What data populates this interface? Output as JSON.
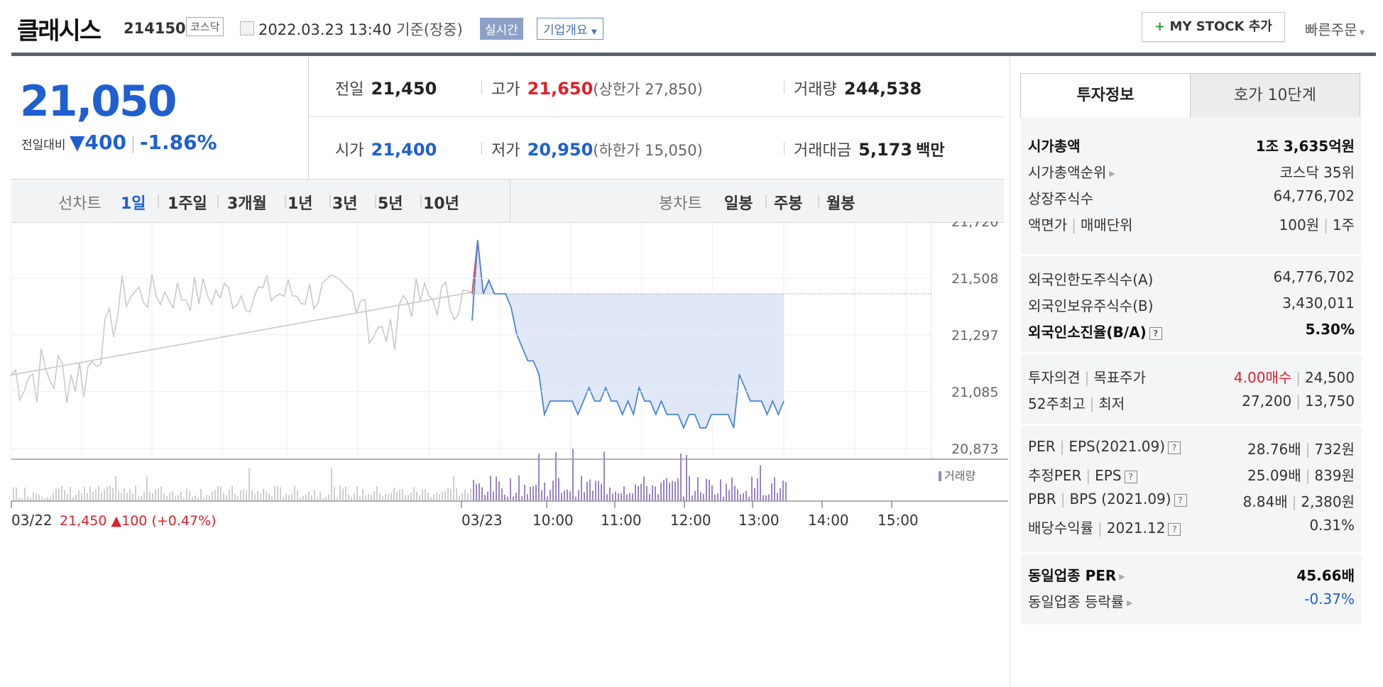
{
  "header": {
    "name": "클래시스",
    "code": "214150",
    "market": "코스닥",
    "datetime": "2022.03.23 13:40",
    "basis": "기준(장중)",
    "realtime": "실시간",
    "corp_overview": "기업개요",
    "mystock_btn": "MY STOCK 추가",
    "quick_order": "빠른주문"
  },
  "quote": {
    "price": "21,050",
    "compare_label": "전일대비",
    "change": "400",
    "change_pct": "-1.86%",
    "prev_label": "전일",
    "prev": "21,450",
    "high_label": "고가",
    "high": "21,650",
    "upper_limit": "(상한가 27,850)",
    "volume_label": "거래량",
    "volume": "244,538",
    "open_label": "시가",
    "open": "21,400",
    "low_label": "저가",
    "low": "20,950",
    "lower_limit": "(하한가 15,050)",
    "amount_label": "거래대금",
    "amount": "5,173",
    "amount_unit": "백만"
  },
  "periods": {
    "line_label": "선차트",
    "items": [
      "1일",
      "1주일",
      "3개월",
      "1년",
      "3년",
      "5년",
      "10년"
    ],
    "selected": "1일",
    "candle_label": "봉차트",
    "candle_items": [
      "일봉",
      "주봉",
      "월봉"
    ]
  },
  "chart_data": {
    "type": "line",
    "title": "",
    "y_ticks": [
      "21,720",
      "21,508",
      "21,297",
      "21,085",
      "20,873"
    ],
    "ylim": [
      20873,
      21720
    ],
    "x_ticks": [
      "03/22",
      "03/23",
      "10:00",
      "11:00",
      "12:00",
      "13:00",
      "14:00",
      "15:00"
    ],
    "prev_close": 21450,
    "prev_day_note": "21,450 ▲100 (+0.47%)",
    "volume_legend": "거래량",
    "series": [
      {
        "name": "03/23",
        "x": [
          "09:00",
          "09:05",
          "09:10",
          "09:15",
          "09:20",
          "09:25",
          "09:30",
          "09:35",
          "09:40",
          "09:45",
          "09:50",
          "09:55",
          "10:00",
          "10:05",
          "10:10",
          "10:15",
          "10:20",
          "10:25",
          "10:30",
          "10:35",
          "10:40",
          "10:45",
          "10:50",
          "10:55",
          "11:00",
          "11:05",
          "11:10",
          "11:15",
          "11:20",
          "11:25",
          "11:30",
          "11:35",
          "11:40",
          "11:45",
          "11:50",
          "11:55",
          "12:00",
          "12:05",
          "12:10",
          "12:15",
          "12:20",
          "12:25",
          "12:30",
          "12:35",
          "12:40",
          "12:45",
          "12:50",
          "12:55",
          "13:00",
          "13:05",
          "13:10",
          "13:15",
          "13:20",
          "13:25",
          "13:30",
          "13:35",
          "13:40"
        ],
        "values": [
          21350,
          21650,
          21450,
          21500,
          21450,
          21450,
          21450,
          21400,
          21300,
          21250,
          21200,
          21200,
          21150,
          21000,
          21050,
          21050,
          21050,
          21050,
          21050,
          21000,
          21050,
          21100,
          21050,
          21050,
          21100,
          21050,
          21050,
          21000,
          21050,
          21000,
          21100,
          21050,
          21050,
          21000,
          21050,
          21000,
          21000,
          21000,
          20950,
          21000,
          21000,
          20950,
          20950,
          21000,
          21000,
          21000,
          21000,
          20950,
          21150,
          21100,
          21050,
          21050,
          21050,
          21000,
          21050,
          21000,
          21050
        ]
      }
    ]
  },
  "tabs": [
    "투자정보",
    "호가 10단계"
  ],
  "invest": {
    "g1": [
      {
        "k": "시가총액",
        "v": "1조 3,635억원",
        "bold": true
      },
      {
        "k": "시가총액순위",
        "v": "코스닥 35위"
      },
      {
        "k": "상장주식수",
        "v": "64,776,702"
      },
      {
        "k": "액면가",
        "k2": "매매단위",
        "v": "100원",
        "v2": "1주"
      }
    ],
    "g2": [
      {
        "k": "외국인한도주식수(A)",
        "v": "64,776,702"
      },
      {
        "k": "외국인보유주식수(B)",
        "v": "3,430,011"
      },
      {
        "k": "외국인소진율(B/A)",
        "v": "5.30%",
        "bold": true
      }
    ],
    "g3": [
      {
        "k": "투자의견",
        "k2": "목표주가",
        "v": "4.00매수",
        "v2": "24,500"
      },
      {
        "k": "52주최고",
        "k2": "최저",
        "v": "27,200",
        "v2": "13,750"
      }
    ],
    "g4": [
      {
        "k": "PER",
        "k2": "EPS(2021.09)",
        "v": "28.76배",
        "v2": "732원"
      },
      {
        "k": "추정PER",
        "k2": "EPS",
        "v": "25.09배",
        "v2": "839원"
      },
      {
        "k": "PBR",
        "k2": "BPS (2021.09)",
        "v": "8.84배",
        "v2": "2,380원"
      },
      {
        "k": "배당수익률",
        "k2": "2021.12",
        "v": "0.31%"
      }
    ],
    "g5": [
      {
        "k": "동일업종 PER",
        "v": "45.66배",
        "bold": true
      },
      {
        "k": "동일업종 등락률",
        "v": "-0.37%"
      }
    ]
  }
}
